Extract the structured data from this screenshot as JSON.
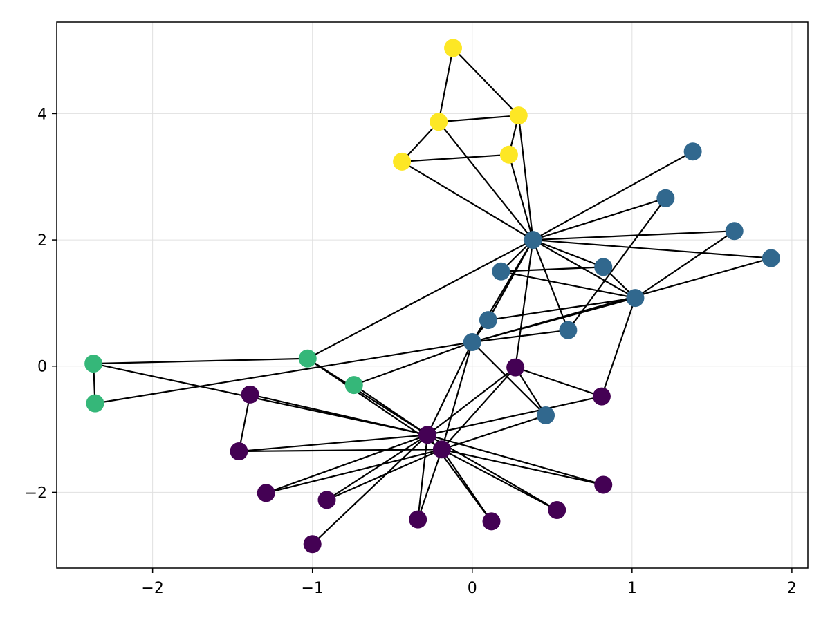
{
  "chart_data": {
    "type": "scatter",
    "subtype": "network-graph",
    "title": "",
    "xlabel": "",
    "ylabel": "",
    "xlim": [
      -2.6,
      2.1
    ],
    "ylim": [
      -3.2,
      5.45
    ],
    "grid": true,
    "x_ticks": [
      -2,
      -1,
      0,
      1,
      2
    ],
    "x_tick_labels": [
      "−2",
      "−1",
      "0",
      "1",
      "2"
    ],
    "y_ticks": [
      -2,
      0,
      2,
      4
    ],
    "y_tick_labels": [
      "−2",
      "0",
      "2",
      "4"
    ],
    "group_colors": {
      "purple": "#440154",
      "blue": "#31688e",
      "green": "#35b779",
      "yellow": "#fde725"
    },
    "edge_color": "#000000",
    "nodes": [
      {
        "id": 0,
        "x": 0.38,
        "y": 2.0,
        "group": "blue"
      },
      {
        "id": 1,
        "x": 1.38,
        "y": 3.4,
        "group": "blue"
      },
      {
        "id": 2,
        "x": 1.21,
        "y": 2.66,
        "group": "blue"
      },
      {
        "id": 3,
        "x": 1.64,
        "y": 2.14,
        "group": "blue"
      },
      {
        "id": 4,
        "x": 1.87,
        "y": 1.71,
        "group": "blue"
      },
      {
        "id": 5,
        "x": 0.82,
        "y": 1.57,
        "group": "blue"
      },
      {
        "id": 6,
        "x": 0.18,
        "y": 1.5,
        "group": "blue"
      },
      {
        "id": 7,
        "x": 1.02,
        "y": 1.08,
        "group": "blue"
      },
      {
        "id": 8,
        "x": 0.1,
        "y": 0.73,
        "group": "blue"
      },
      {
        "id": 9,
        "x": 0.6,
        "y": 0.57,
        "group": "blue"
      },
      {
        "id": 10,
        "x": 0.0,
        "y": 0.38,
        "group": "blue"
      },
      {
        "id": 11,
        "x": 0.46,
        "y": -0.78,
        "group": "blue"
      },
      {
        "id": 12,
        "x": -0.12,
        "y": 5.04,
        "group": "yellow"
      },
      {
        "id": 13,
        "x": -0.21,
        "y": 3.87,
        "group": "yellow"
      },
      {
        "id": 14,
        "x": 0.29,
        "y": 3.97,
        "group": "yellow"
      },
      {
        "id": 15,
        "x": 0.23,
        "y": 3.35,
        "group": "yellow"
      },
      {
        "id": 16,
        "x": -0.44,
        "y": 3.24,
        "group": "yellow"
      },
      {
        "id": 17,
        "x": -2.37,
        "y": 0.04,
        "group": "green"
      },
      {
        "id": 18,
        "x": -2.36,
        "y": -0.59,
        "group": "green"
      },
      {
        "id": 19,
        "x": -1.03,
        "y": 0.12,
        "group": "green"
      },
      {
        "id": 20,
        "x": -0.74,
        "y": -0.3,
        "group": "green"
      },
      {
        "id": 21,
        "x": 0.27,
        "y": -0.02,
        "group": "purple"
      },
      {
        "id": 22,
        "x": 0.81,
        "y": -0.48,
        "group": "purple"
      },
      {
        "id": 23,
        "x": -1.39,
        "y": -0.45,
        "group": "purple"
      },
      {
        "id": 24,
        "x": -0.28,
        "y": -1.09,
        "group": "purple"
      },
      {
        "id": 25,
        "x": -0.19,
        "y": -1.32,
        "group": "purple"
      },
      {
        "id": 26,
        "x": -1.46,
        "y": -1.35,
        "group": "purple"
      },
      {
        "id": 27,
        "x": -1.29,
        "y": -2.01,
        "group": "purple"
      },
      {
        "id": 28,
        "x": -0.91,
        "y": -2.12,
        "group": "purple"
      },
      {
        "id": 29,
        "x": 0.82,
        "y": -1.88,
        "group": "purple"
      },
      {
        "id": 30,
        "x": -0.34,
        "y": -2.43,
        "group": "purple"
      },
      {
        "id": 31,
        "x": 0.12,
        "y": -2.46,
        "group": "purple"
      },
      {
        "id": 32,
        "x": 0.53,
        "y": -2.28,
        "group": "purple"
      },
      {
        "id": 33,
        "x": -1.0,
        "y": -2.82,
        "group": "purple"
      }
    ],
    "edges": [
      [
        12,
        13
      ],
      [
        12,
        14
      ],
      [
        13,
        14
      ],
      [
        13,
        16
      ],
      [
        16,
        15
      ],
      [
        14,
        15
      ],
      [
        13,
        0
      ],
      [
        16,
        0
      ],
      [
        15,
        0
      ],
      [
        14,
        0
      ],
      [
        0,
        1
      ],
      [
        0,
        2
      ],
      [
        0,
        3
      ],
      [
        0,
        4
      ],
      [
        0,
        5
      ],
      [
        0,
        6
      ],
      [
        0,
        7
      ],
      [
        0,
        8
      ],
      [
        0,
        9
      ],
      [
        0,
        10
      ],
      [
        0,
        21
      ],
      [
        0,
        19
      ],
      [
        5,
        6
      ],
      [
        5,
        7
      ],
      [
        6,
        7
      ],
      [
        7,
        3
      ],
      [
        7,
        8
      ],
      [
        7,
        10
      ],
      [
        7,
        22
      ],
      [
        2,
        9
      ],
      [
        4,
        10
      ],
      [
        9,
        10
      ],
      [
        8,
        10
      ],
      [
        8,
        0
      ],
      [
        10,
        11
      ],
      [
        10,
        24
      ],
      [
        10,
        25
      ],
      [
        10,
        20
      ],
      [
        10,
        18
      ],
      [
        21,
        22
      ],
      [
        21,
        24
      ],
      [
        21,
        25
      ],
      [
        21,
        11
      ],
      [
        17,
        18
      ],
      [
        17,
        19
      ],
      [
        17,
        24
      ],
      [
        19,
        24
      ],
      [
        20,
        24
      ],
      [
        19,
        25
      ],
      [
        23,
        26
      ],
      [
        23,
        24
      ],
      [
        26,
        25
      ],
      [
        26,
        24
      ],
      [
        24,
        22
      ],
      [
        24,
        27
      ],
      [
        24,
        28
      ],
      [
        24,
        29
      ],
      [
        24,
        30
      ],
      [
        24,
        31
      ],
      [
        24,
        32
      ],
      [
        24,
        33
      ],
      [
        25,
        27
      ],
      [
        25,
        11
      ],
      [
        25,
        29
      ],
      [
        25,
        32
      ],
      [
        25,
        31
      ],
      [
        25,
        30
      ],
      [
        25,
        28
      ]
    ]
  }
}
